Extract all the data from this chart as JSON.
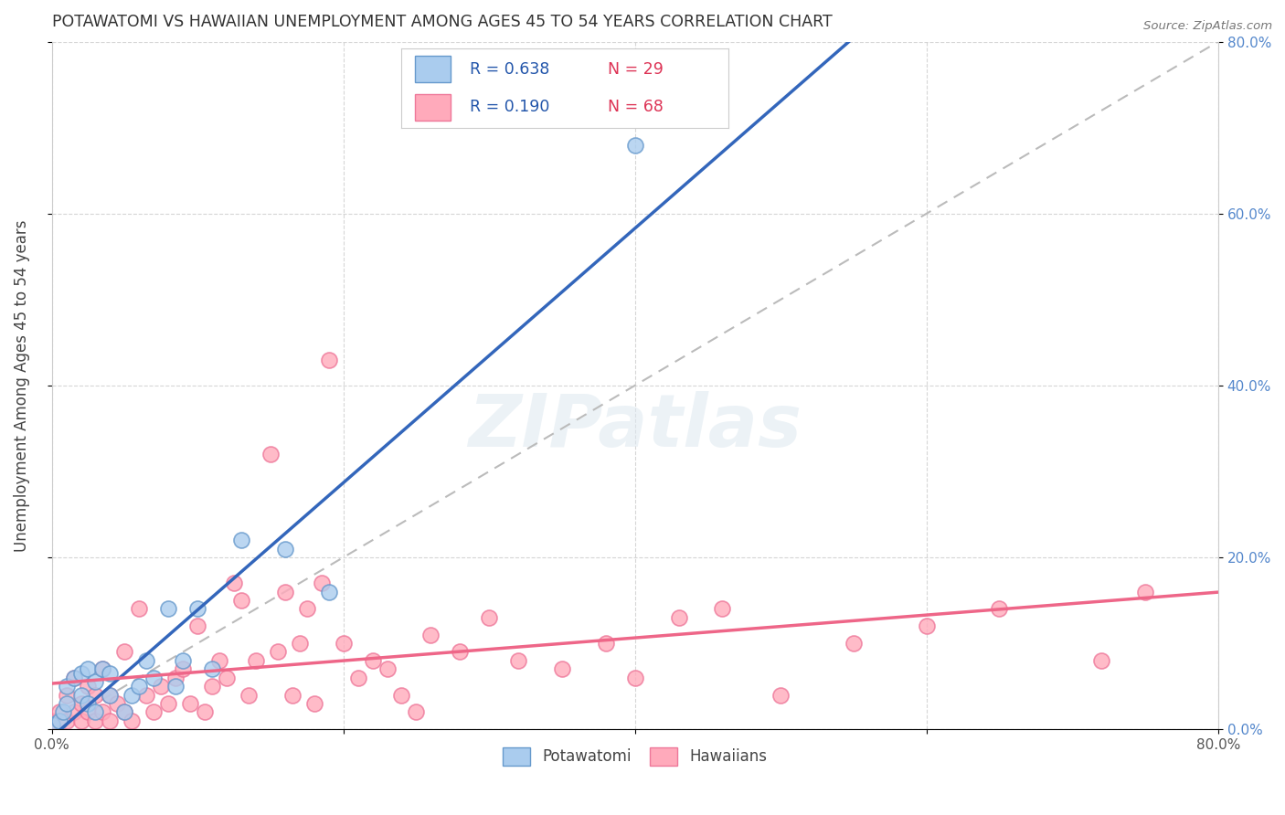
{
  "title": "POTAWATOMI VS HAWAIIAN UNEMPLOYMENT AMONG AGES 45 TO 54 YEARS CORRELATION CHART",
  "source": "Source: ZipAtlas.com",
  "ylabel": "Unemployment Among Ages 45 to 54 years",
  "xlim": [
    0.0,
    0.8
  ],
  "ylim": [
    0.0,
    0.8
  ],
  "xticks": [
    0.0,
    0.2,
    0.4,
    0.6,
    0.8
  ],
  "yticks": [
    0.0,
    0.2,
    0.4,
    0.6,
    0.8
  ],
  "xticklabels_show": [
    "0.0%",
    "",
    "",
    "",
    "80.0%"
  ],
  "yticklabels_left": [
    "",
    "",
    "",
    "",
    ""
  ],
  "yticklabels_right": [
    "0.0%",
    "20.0%",
    "40.0%",
    "60.0%",
    "80.0%"
  ],
  "potawatomi_color": "#aaccee",
  "potawatomi_edge": "#6699cc",
  "hawaiian_color": "#ffaabb",
  "hawaiian_edge": "#ee7799",
  "trend_line_color_blue": "#3366bb",
  "trend_line_color_pink": "#ee6688",
  "trend_dashed_color": "#bbbbbb",
  "R_potawatomi": 0.638,
  "N_potawatomi": 29,
  "R_hawaiian": 0.19,
  "N_hawaiian": 68,
  "legend_R_color": "#2255aa",
  "legend_N_color": "#dd3355",
  "watermark": "ZIPatlas",
  "potawatomi_x": [
    0.0,
    0.005,
    0.008,
    0.01,
    0.01,
    0.015,
    0.02,
    0.02,
    0.025,
    0.025,
    0.03,
    0.03,
    0.035,
    0.04,
    0.04,
    0.05,
    0.055,
    0.06,
    0.065,
    0.07,
    0.08,
    0.085,
    0.09,
    0.1,
    0.11,
    0.13,
    0.16,
    0.19,
    0.4
  ],
  "potawatomi_y": [
    0.005,
    0.01,
    0.02,
    0.03,
    0.05,
    0.06,
    0.04,
    0.065,
    0.03,
    0.07,
    0.02,
    0.055,
    0.07,
    0.04,
    0.065,
    0.02,
    0.04,
    0.05,
    0.08,
    0.06,
    0.14,
    0.05,
    0.08,
    0.14,
    0.07,
    0.22,
    0.21,
    0.16,
    0.68
  ],
  "hawaiian_x": [
    0.0,
    0.0,
    0.005,
    0.01,
    0.01,
    0.015,
    0.015,
    0.02,
    0.02,
    0.025,
    0.025,
    0.03,
    0.03,
    0.035,
    0.035,
    0.04,
    0.04,
    0.045,
    0.05,
    0.05,
    0.055,
    0.06,
    0.065,
    0.07,
    0.075,
    0.08,
    0.085,
    0.09,
    0.095,
    0.1,
    0.105,
    0.11,
    0.115,
    0.12,
    0.125,
    0.13,
    0.135,
    0.14,
    0.15,
    0.155,
    0.16,
    0.165,
    0.17,
    0.175,
    0.18,
    0.185,
    0.19,
    0.2,
    0.21,
    0.22,
    0.23,
    0.24,
    0.25,
    0.26,
    0.28,
    0.3,
    0.32,
    0.35,
    0.38,
    0.4,
    0.43,
    0.46,
    0.5,
    0.55,
    0.6,
    0.65,
    0.72,
    0.75
  ],
  "hawaiian_y": [
    0.005,
    0.01,
    0.02,
    0.01,
    0.04,
    0.02,
    0.06,
    0.01,
    0.03,
    0.02,
    0.05,
    0.01,
    0.04,
    0.02,
    0.07,
    0.01,
    0.04,
    0.03,
    0.02,
    0.09,
    0.01,
    0.14,
    0.04,
    0.02,
    0.05,
    0.03,
    0.06,
    0.07,
    0.03,
    0.12,
    0.02,
    0.05,
    0.08,
    0.06,
    0.17,
    0.15,
    0.04,
    0.08,
    0.32,
    0.09,
    0.16,
    0.04,
    0.1,
    0.14,
    0.03,
    0.17,
    0.43,
    0.1,
    0.06,
    0.08,
    0.07,
    0.04,
    0.02,
    0.11,
    0.09,
    0.13,
    0.08,
    0.07,
    0.1,
    0.06,
    0.13,
    0.14,
    0.04,
    0.1,
    0.12,
    0.14,
    0.08,
    0.16
  ]
}
